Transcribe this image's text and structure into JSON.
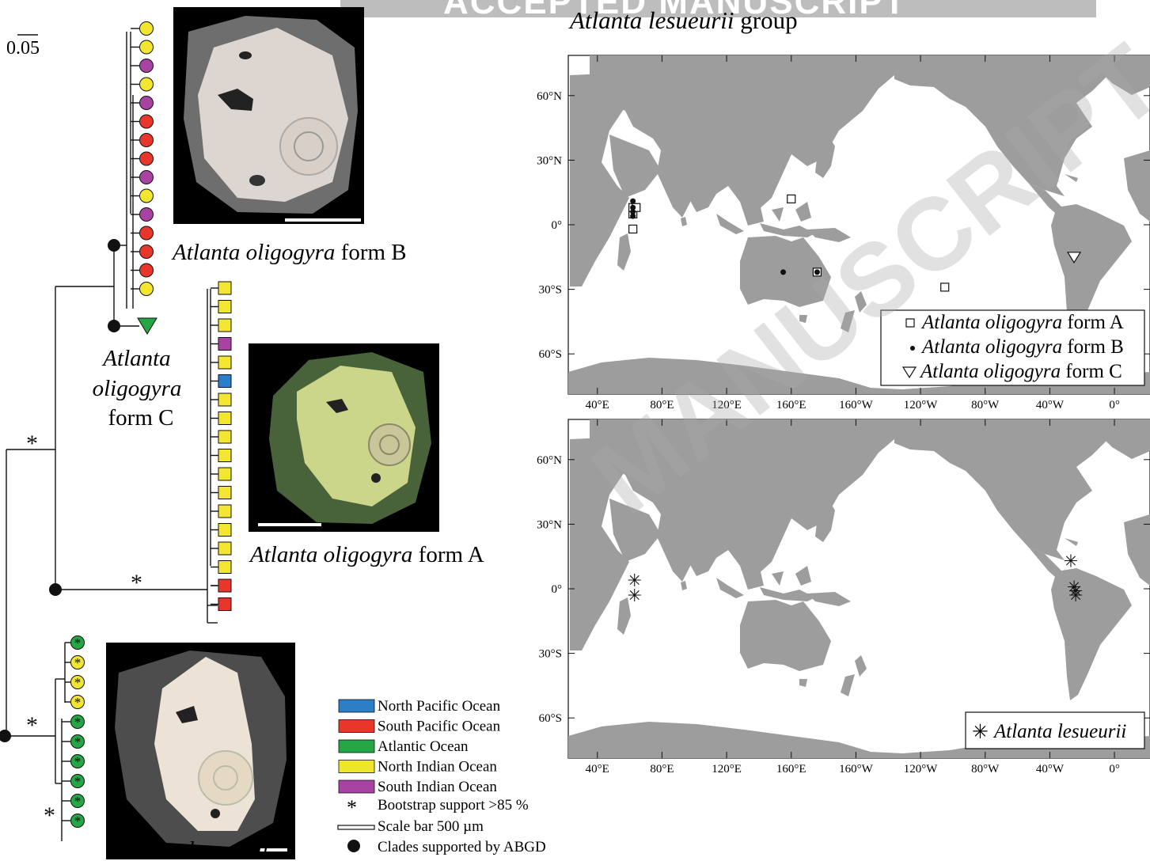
{
  "watermark": {
    "top": "ACCEPTED MANUSCRIPT",
    "diagonal": "MANUSCRIPT"
  },
  "map_title": {
    "species": "Atlanta lesueurii",
    "suffix": " group"
  },
  "tree": {
    "scale_label": "0.05",
    "bootstrap_mark": "*",
    "taxon_labels": {
      "form_b": {
        "species": "Atlanta oligogyra",
        "form": " form B"
      },
      "form_c": {
        "line1": "Atlanta",
        "line2": "oligogyra",
        "line3": "form C"
      },
      "form_a": {
        "species": "Atlanta oligogyra",
        "form": " form A"
      },
      "lesueurii": "Atlanta lesueurii"
    },
    "form_b_tips": [
      "yellow",
      "yellow",
      "purple",
      "yellow",
      "purple",
      "red",
      "red",
      "red",
      "purple",
      "yellow",
      "purple",
      "red",
      "red",
      "red",
      "yellow"
    ],
    "form_c_tips": [
      "green"
    ],
    "form_a_tips": [
      "yellow",
      "yellow",
      "yellow",
      "purple",
      "yellow",
      "blue",
      "yellow",
      "yellow",
      "yellow",
      "yellow",
      "yellow",
      "yellow",
      "yellow",
      "yellow",
      "yellow",
      "yellow",
      "red",
      "red"
    ],
    "lesueurii_tips": [
      "green",
      "yellow",
      "yellow",
      "yellow",
      "green",
      "green",
      "green",
      "green",
      "green",
      "green"
    ]
  },
  "legend_left": {
    "oceans": [
      {
        "label": "North Pacific Ocean",
        "color": "#2b7fc7"
      },
      {
        "label": "South Pacific Ocean",
        "color": "#e8372a"
      },
      {
        "label": "Atlantic Ocean",
        "color": "#25a745"
      },
      {
        "label": "North Indian Ocean",
        "color": "#eee62a"
      },
      {
        "label": "South Indian Ocean",
        "color": "#a943a3"
      }
    ],
    "bootstrap": "Bootstrap support >85 %",
    "scale_bar": "Scale bar 500 µm",
    "abgd": "Clades supported by ABGD"
  },
  "map_top": {
    "lat_labels": [
      "60°N",
      "30°N",
      "0°",
      "30°S",
      "60°S"
    ],
    "lon_labels": [
      "40°E",
      "80°E",
      "120°E",
      "160°E",
      "160°W",
      "120°W",
      "80°W",
      "40°W",
      "0°"
    ],
    "legend": [
      {
        "symbol": "open-square",
        "species": "Atlanta oligogyra",
        "form": " form A"
      },
      {
        "symbol": "filled-dot",
        "species": "Atlanta oligogyra",
        "form": " form B"
      },
      {
        "symbol": "open-triangle",
        "species": "Atlanta oligogyra",
        "form": " form C"
      }
    ],
    "form_a_records": [
      [
        12,
        -22
      ],
      [
        62,
        -2
      ],
      [
        62,
        5
      ],
      [
        62,
        8
      ],
      [
        64,
        8
      ],
      [
        176,
        -22
      ],
      [
        160,
        12
      ],
      [
        -105,
        -29
      ]
    ],
    "form_b_records": [
      [
        12,
        -22
      ],
      [
        62,
        4
      ],
      [
        62,
        6
      ],
      [
        62,
        8
      ],
      [
        62,
        11
      ],
      [
        155,
        -22
      ],
      [
        176,
        -22
      ]
    ],
    "form_c_records": [
      [
        -25,
        -15
      ]
    ]
  },
  "map_bottom": {
    "lat_labels": [
      "60°N",
      "30°N",
      "0°",
      "30°S",
      "60°S"
    ],
    "lon_labels": [
      "40°E",
      "80°E",
      "120°E",
      "160°E",
      "160°W",
      "120°W",
      "80°W",
      "40°W",
      "0°"
    ],
    "legend": [
      {
        "symbol": "asterisk",
        "species": "Atlanta lesueurii"
      }
    ],
    "lesueurii_records": [
      [
        63,
        4
      ],
      [
        63,
        -3
      ],
      [
        -27,
        13
      ],
      [
        -25,
        1
      ],
      [
        -24,
        -1
      ],
      [
        -24,
        -3
      ]
    ]
  },
  "colors": {
    "land": "#9d9d9d",
    "tip_map": {
      "yellow": "#f2e630",
      "purple": "#a943a3",
      "red": "#e8372a",
      "green": "#25a745",
      "blue": "#2b7fc7"
    }
  }
}
